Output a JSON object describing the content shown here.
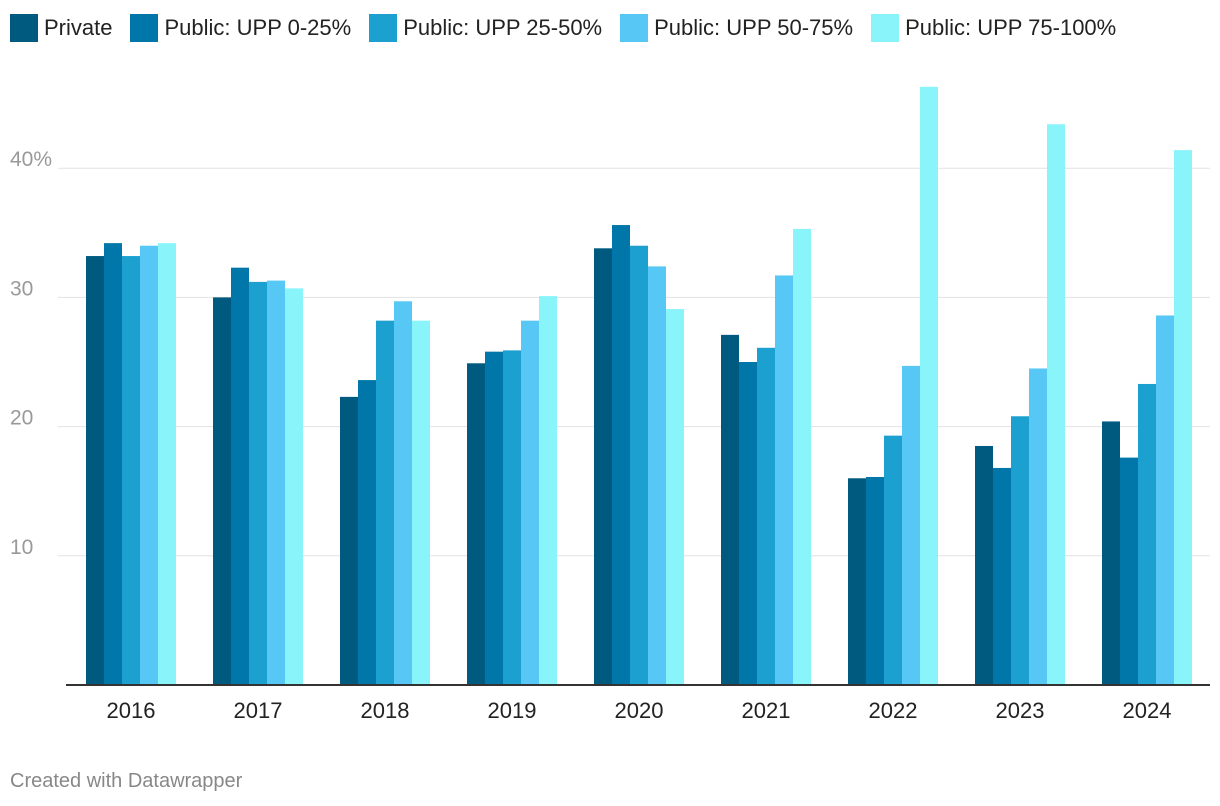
{
  "chart_data": {
    "type": "bar",
    "title": "",
    "xlabel": "",
    "ylabel": "",
    "categories": [
      "2016",
      "2017",
      "2018",
      "2019",
      "2020",
      "2021",
      "2022",
      "2023",
      "2024"
    ],
    "series": [
      {
        "name": "Private",
        "color": "#005a80",
        "values": [
          33.2,
          30.0,
          22.3,
          24.9,
          33.8,
          27.1,
          16.0,
          18.5,
          20.4
        ]
      },
      {
        "name": "Public: UPP 0-25%",
        "color": "#0077a8",
        "values": [
          34.2,
          32.3,
          23.6,
          25.8,
          35.6,
          25.0,
          16.1,
          16.8,
          17.6
        ]
      },
      {
        "name": "Public: UPP 25-50%",
        "color": "#1ba0d0",
        "values": [
          33.2,
          31.2,
          28.2,
          25.9,
          34.0,
          26.1,
          19.3,
          20.8,
          23.3
        ]
      },
      {
        "name": "Public: UPP 50-75%",
        "color": "#57c8f5",
        "values": [
          34.0,
          31.3,
          29.7,
          28.2,
          32.4,
          31.7,
          24.7,
          24.5,
          28.6
        ]
      },
      {
        "name": "Public: UPP 75-100%",
        "color": "#8af4fb",
        "values": [
          34.2,
          30.7,
          28.2,
          30.1,
          29.1,
          35.3,
          46.3,
          43.4,
          41.4
        ]
      }
    ],
    "ylim": [
      0,
      47.6
    ],
    "yticks": [
      {
        "value": 10,
        "label": "10"
      },
      {
        "value": 20,
        "label": "20"
      },
      {
        "value": 30,
        "label": "30"
      },
      {
        "value": 40,
        "label": "40%"
      }
    ],
    "grid": true,
    "legend_position": "top-left"
  },
  "footer": {
    "credit": "Created with Datawrapper"
  }
}
